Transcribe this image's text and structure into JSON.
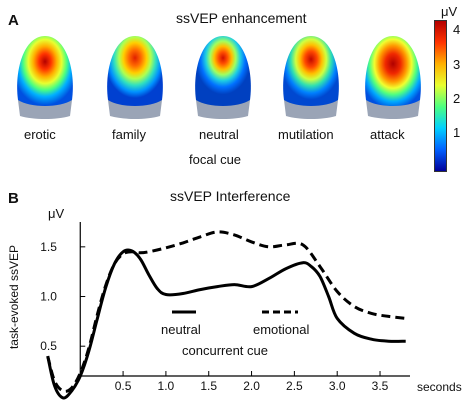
{
  "panel_a": {
    "letter": "A",
    "title": "ssVEP enhancement",
    "unit": "μV",
    "colorbar_ticks": [
      "4",
      "3",
      "2",
      "1"
    ],
    "colorbar_colors": [
      "#b30000",
      "#ff3300",
      "#ffb000",
      "#e8ff30",
      "#4cff80",
      "#00d0ff",
      "#0060ff",
      "#00009a"
    ],
    "heads": [
      {
        "label": "erotic"
      },
      {
        "label": "family"
      },
      {
        "label": "neutral"
      },
      {
        "label": "mutilation"
      },
      {
        "label": "attack"
      }
    ],
    "xaxis_label": "focal cue"
  },
  "panel_b": {
    "letter": "B",
    "title": "ssVEP Interference",
    "ylabel": "task-evoked ssVEP",
    "legend": {
      "neutral": "neutral",
      "emotional": "emotional",
      "caption": "concurrent cue"
    }
  },
  "chart_data": {
    "type": "line",
    "title": "ssVEP Interference",
    "ylabel": "task-evoked ssVEP",
    "yunit": "μV",
    "xunit": "seconds",
    "xlim": [
      -0.4,
      3.85
    ],
    "ylim": [
      0.2,
      1.75
    ],
    "xticks": [
      "0.5",
      "1.0",
      "1.5",
      "2.0",
      "2.5",
      "3.0",
      "3.5"
    ],
    "xtick_values": [
      0.5,
      1.0,
      1.5,
      2.0,
      2.5,
      3.0,
      3.5
    ],
    "yticks": [
      "0.5",
      "1.0",
      "1.5"
    ],
    "ytick_values": [
      0.5,
      1.0,
      1.5
    ],
    "series": [
      {
        "name": "neutral",
        "style": "solid",
        "x": [
          -0.38,
          -0.3,
          -0.2,
          -0.1,
          0.0,
          0.1,
          0.2,
          0.3,
          0.4,
          0.5,
          0.6,
          0.7,
          0.8,
          0.9,
          1.0,
          1.2,
          1.4,
          1.6,
          1.8,
          2.0,
          2.2,
          2.4,
          2.6,
          2.7,
          2.8,
          2.9,
          3.0,
          3.2,
          3.4,
          3.6,
          3.8
        ],
        "y": [
          0.4,
          0.1,
          -0.02,
          0.05,
          0.2,
          0.45,
          0.78,
          1.1,
          1.33,
          1.45,
          1.46,
          1.38,
          1.22,
          1.08,
          1.02,
          1.03,
          1.07,
          1.1,
          1.12,
          1.1,
          1.18,
          1.28,
          1.34,
          1.3,
          1.2,
          1.0,
          0.78,
          0.63,
          0.57,
          0.55,
          0.55
        ]
      },
      {
        "name": "emotional",
        "style": "dashed",
        "x": [
          -0.38,
          -0.3,
          -0.2,
          -0.1,
          0.0,
          0.1,
          0.2,
          0.3,
          0.4,
          0.5,
          0.6,
          0.7,
          0.8,
          1.0,
          1.2,
          1.4,
          1.6,
          1.8,
          2.0,
          2.2,
          2.4,
          2.6,
          2.8,
          3.0,
          3.2,
          3.4,
          3.6,
          3.8
        ],
        "y": [
          0.4,
          0.15,
          0.05,
          0.08,
          0.23,
          0.48,
          0.82,
          1.12,
          1.33,
          1.43,
          1.45,
          1.44,
          1.45,
          1.49,
          1.54,
          1.6,
          1.65,
          1.62,
          1.55,
          1.5,
          1.52,
          1.52,
          1.3,
          1.05,
          0.9,
          0.83,
          0.8,
          0.78
        ]
      }
    ]
  }
}
